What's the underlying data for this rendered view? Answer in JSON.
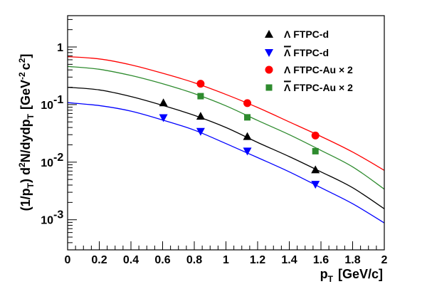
{
  "chart_data": {
    "type": "scatter",
    "title": "",
    "xlabel": "p",
    "xlabel_sub": "T",
    "xlabel_unit": "[GeV/c]",
    "ylabel": {
      "p1": "(1/p",
      "p1_sub": "T",
      "p2": ") d",
      "p2_sup": "2",
      "p3": "N/dydp",
      "p3_sub": "T",
      "p4": "[GeV",
      "p4_sup": "-2",
      "p5": "c",
      "p5_sup": "2",
      "p6": "]"
    },
    "x_range": [
      0,
      2
    ],
    "y_range": [
      0.0003,
      3.5
    ],
    "y_scale": "log",
    "grid": false,
    "legend_position": "top-right",
    "x_ticks": [
      {
        "v": 0,
        "label": "0"
      },
      {
        "v": 0.2,
        "label": "0.2"
      },
      {
        "v": 0.4,
        "label": "0.4"
      },
      {
        "v": 0.6,
        "label": "0.6"
      },
      {
        "v": 0.8,
        "label": "0.8"
      },
      {
        "v": 1.0,
        "label": "1"
      },
      {
        "v": 1.2,
        "label": "1.2"
      },
      {
        "v": 1.4,
        "label": "1.4"
      },
      {
        "v": 1.6,
        "label": "1.6"
      },
      {
        "v": 1.8,
        "label": "1.8"
      },
      {
        "v": 2.0,
        "label": "2"
      }
    ],
    "y_ticks": [
      {
        "v": 1,
        "label": "1",
        "exp": ""
      },
      {
        "v": 0.1,
        "label": "10",
        "exp": "-1"
      },
      {
        "v": 0.01,
        "label": "10",
        "exp": "-2"
      },
      {
        "v": 0.001,
        "label": "10",
        "exp": "-3"
      }
    ],
    "series": [
      {
        "name": "Λ FTPC-d",
        "overline": false,
        "color": "#000000",
        "marker": "triangle-up",
        "x": [
          0.605,
          0.84,
          1.135,
          1.565
        ],
        "y": [
          0.108,
          0.063,
          0.028,
          0.0074
        ],
        "fit_x": [
          0,
          0.2,
          0.4,
          0.6,
          0.8,
          1.0,
          1.2,
          1.4,
          1.6,
          1.8,
          2.0
        ],
        "fit_y": [
          0.2,
          0.18,
          0.138,
          0.097,
          0.065,
          0.04,
          0.022,
          0.0125,
          0.0068,
          0.0036,
          0.00155
        ]
      },
      {
        "name": "Λ FTPC-d",
        "overline": true,
        "color": "#0000ff",
        "marker": "triangle-down",
        "x": [
          0.605,
          0.84,
          1.135,
          1.565
        ],
        "y": [
          0.059,
          0.034,
          0.0155,
          0.0041
        ],
        "fit_x": [
          0,
          0.2,
          0.4,
          0.6,
          0.8,
          1.0,
          1.2,
          1.4,
          1.6,
          1.8,
          2.0
        ],
        "fit_y": [
          0.108,
          0.096,
          0.077,
          0.054,
          0.036,
          0.021,
          0.012,
          0.0068,
          0.0036,
          0.0019,
          0.00088
        ]
      },
      {
        "name": "Λ FTPC-Au × 2",
        "overline": false,
        "color": "#ff0000",
        "marker": "circle",
        "x": [
          0.84,
          1.135,
          1.565
        ],
        "y": [
          0.23,
          0.106,
          0.029
        ],
        "fit_x": [
          0,
          0.2,
          0.4,
          0.6,
          0.8,
          1.0,
          1.2,
          1.4,
          1.6,
          1.8,
          2.0
        ],
        "fit_y": [
          0.68,
          0.62,
          0.49,
          0.35,
          0.24,
          0.15,
          0.089,
          0.05,
          0.028,
          0.015,
          0.0072
        ]
      },
      {
        "name": "Λ FTPC-Au × 2",
        "overline": true,
        "color": "#2e8b2e",
        "marker": "square",
        "x": [
          0.84,
          1.135,
          1.565
        ],
        "y": [
          0.14,
          0.06,
          0.0155
        ],
        "fit_x": [
          0,
          0.2,
          0.4,
          0.6,
          0.8,
          1.0,
          1.2,
          1.4,
          1.6,
          1.8,
          2.0
        ],
        "fit_y": [
          0.46,
          0.41,
          0.32,
          0.23,
          0.155,
          0.095,
          0.053,
          0.03,
          0.016,
          0.0083,
          0.0034
        ]
      }
    ]
  }
}
